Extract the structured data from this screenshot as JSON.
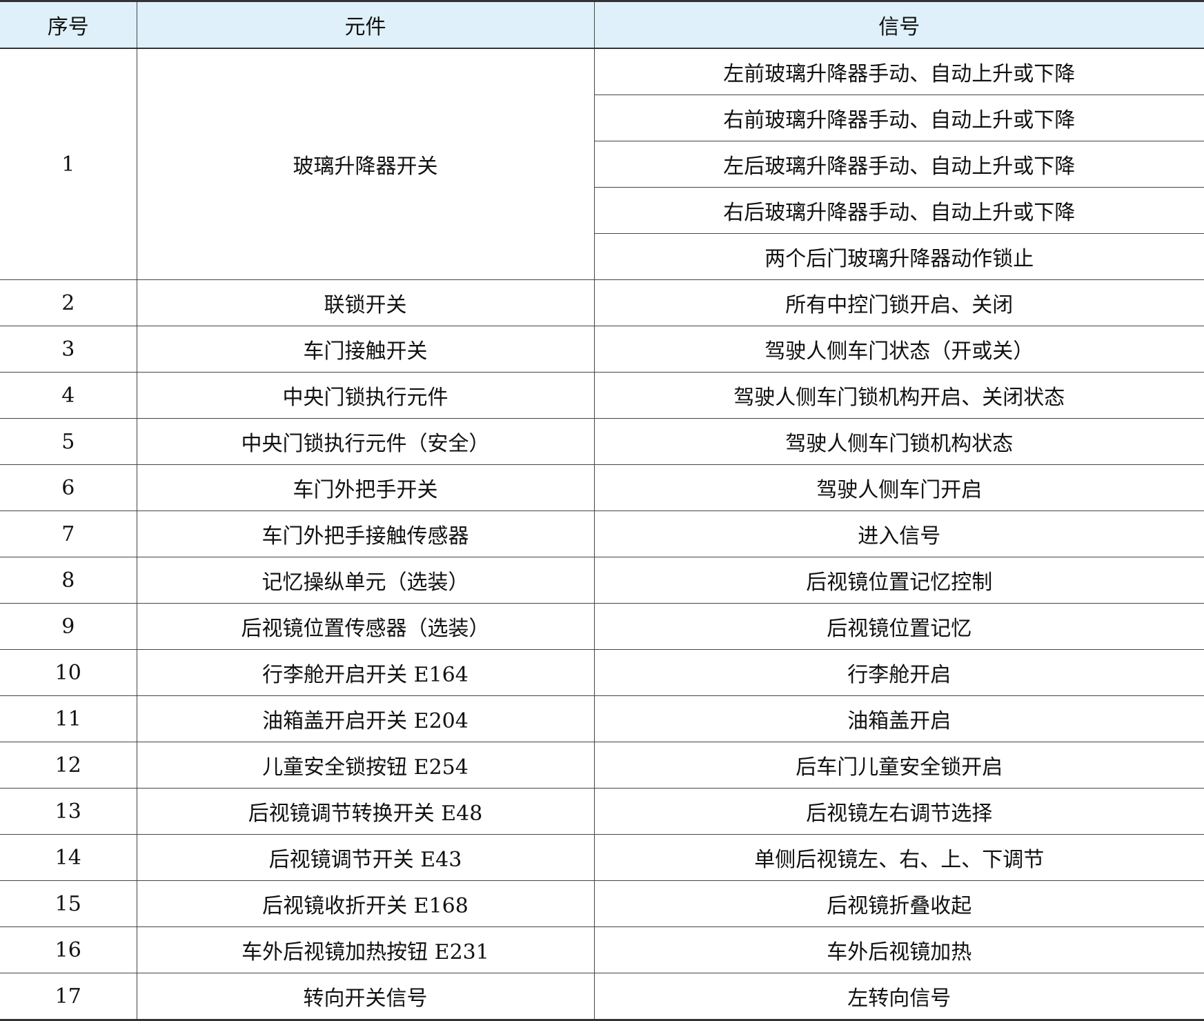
{
  "header": {
    "no": "序号",
    "component": "元件",
    "signal": "信号"
  },
  "rows": [
    {
      "no": "1",
      "component": "玻璃升降器开关",
      "signals": [
        "左前玻璃升降器手动、自动上升或下降",
        "右前玻璃升降器手动、自动上升或下降",
        "左后玻璃升降器手动、自动上升或下降",
        "右后玻璃升降器手动、自动上升或下降",
        "两个后门玻璃升降器动作锁止"
      ]
    },
    {
      "no": "2",
      "component": "联锁开关",
      "signal": "所有中控门锁开启、关闭"
    },
    {
      "no": "3",
      "component": "车门接触开关",
      "signal": "驾驶人侧车门状态（开或关）"
    },
    {
      "no": "4",
      "component": "中央门锁执行元件",
      "signal": "驾驶人侧车门锁机构开启、关闭状态"
    },
    {
      "no": "5",
      "component": "中央门锁执行元件（安全）",
      "signal": "驾驶人侧车门锁机构状态"
    },
    {
      "no": "6",
      "component": "车门外把手开关",
      "signal": "驾驶人侧车门开启"
    },
    {
      "no": "7",
      "component": "车门外把手接触传感器",
      "signal": "进入信号"
    },
    {
      "no": "8",
      "component": "记忆操纵单元（选装）",
      "signal": "后视镜位置记忆控制"
    },
    {
      "no": "9",
      "component": "后视镜位置传感器（选装）",
      "signal": "后视镜位置记忆"
    },
    {
      "no": "10",
      "component": "行李舱开启开关 E164",
      "signal": "行李舱开启"
    },
    {
      "no": "11",
      "component": "油箱盖开启开关 E204",
      "signal": "油箱盖开启"
    },
    {
      "no": "12",
      "component": "儿童安全锁按钮 E254",
      "signal": "后车门儿童安全锁开启"
    },
    {
      "no": "13",
      "component": "后视镜调节转换开关 E48",
      "signal": "后视镜左右调节选择"
    },
    {
      "no": "14",
      "component": "后视镜调节开关 E43",
      "signal": "单侧后视镜左、右、上、下调节"
    },
    {
      "no": "15",
      "component": "后视镜收折开关 E168",
      "signal": "后视镜折叠收起"
    },
    {
      "no": "16",
      "component": "车外后视镜加热按钮 E231",
      "signal": "车外后视镜加热"
    },
    {
      "no": "17",
      "component": "转向开关信号",
      "signal": "左转向信号"
    }
  ]
}
